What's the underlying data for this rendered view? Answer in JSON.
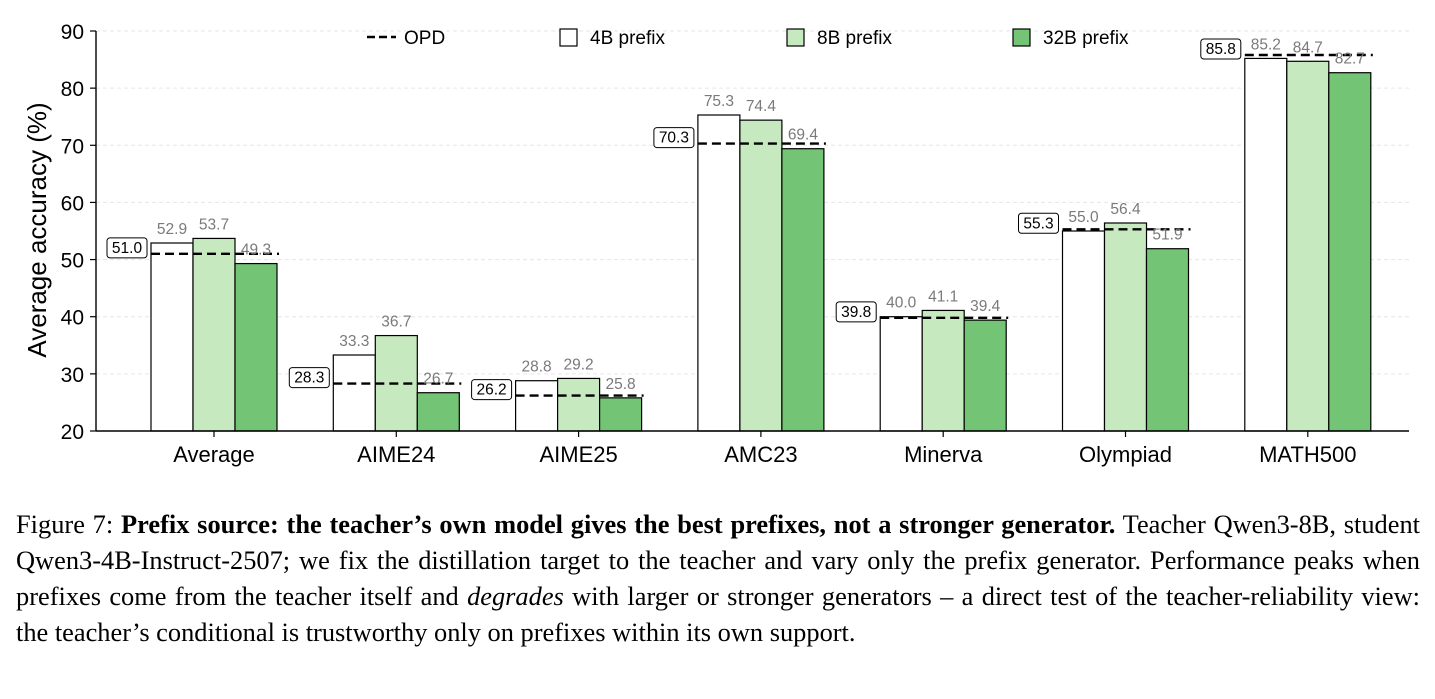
{
  "chart_data": {
    "type": "bar",
    "ylabel": "Average accuracy (%)",
    "xlabel": "",
    "ylim": [
      20,
      90
    ],
    "yticks": [
      20,
      30,
      40,
      50,
      60,
      70,
      80,
      90
    ],
    "grid": true,
    "legend_position": "top",
    "categories": [
      "Average",
      "AIME24",
      "AIME25",
      "AMC23",
      "Minerva",
      "Olympiad",
      "MATH500"
    ],
    "baseline": {
      "name": "OPD",
      "values": [
        51.0,
        28.3,
        26.2,
        70.3,
        39.8,
        55.3,
        85.8
      ],
      "labels": [
        "51.0",
        "28.3",
        "26.2",
        "70.3",
        "39.8",
        "55.3",
        "85.8"
      ]
    },
    "series": [
      {
        "name": "4B prefix",
        "color": "#ffffff",
        "values": [
          52.9,
          33.3,
          28.8,
          75.3,
          40.0,
          55.0,
          85.2
        ],
        "labels": [
          "52.9",
          "33.3",
          "28.8",
          "75.3",
          "40.0",
          "55.0",
          "85.2"
        ]
      },
      {
        "name": "8B prefix",
        "color": "#c7e9c0",
        "values": [
          53.7,
          36.7,
          29.2,
          74.4,
          41.1,
          56.4,
          84.7
        ],
        "labels": [
          "53.7",
          "36.7",
          "29.2",
          "74.4",
          "41.1",
          "56.4",
          "84.7"
        ]
      },
      {
        "name": "32B prefix",
        "color": "#74c476",
        "values": [
          49.3,
          26.7,
          25.8,
          69.4,
          39.4,
          51.9,
          82.7
        ],
        "labels": [
          "49.3",
          "26.7",
          "25.8",
          "69.4",
          "39.4",
          "51.9",
          "82.7"
        ]
      }
    ]
  },
  "caption": {
    "figure_label": "Figure 7:",
    "bold_title": "Prefix source: the teacher’s own model gives the best prefixes, not a stronger generator.",
    "text_1": "Teacher Qwen3-8B, student Qwen3-4B-Instruct-2507; we fix the distillation target to the teacher and vary only the prefix generator. Performance peaks when prefixes come from the teacher itself and",
    "italic_word": "degrades",
    "text_2": "with larger or stronger generators – a direct test of the teacher-reliability view: the teacher’s conditional is trustworthy only on prefixes within its own support."
  }
}
